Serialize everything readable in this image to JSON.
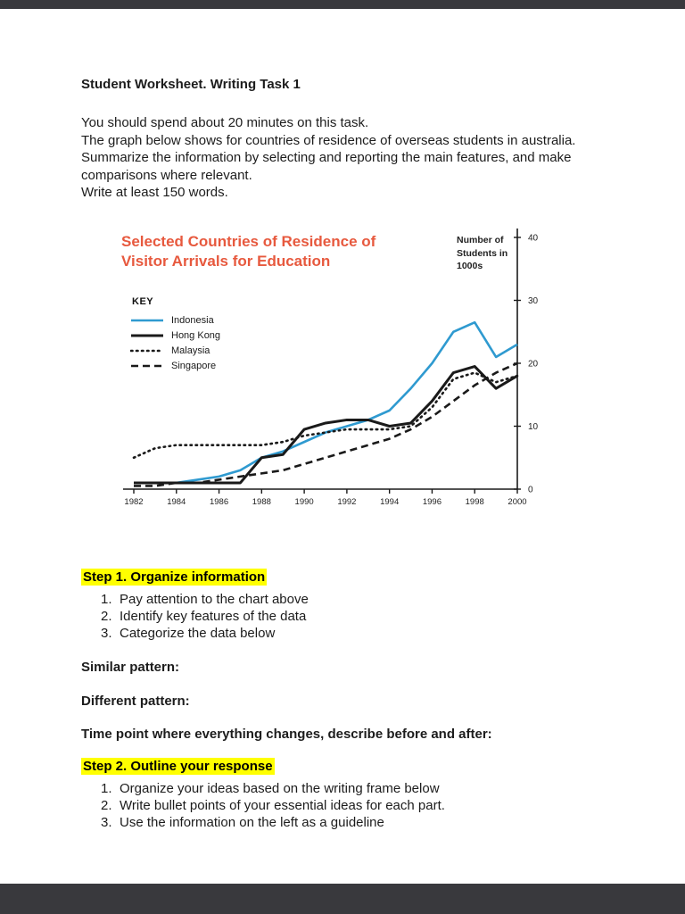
{
  "viewer": {
    "chrome_color": "#39393d"
  },
  "document": {
    "title": "Student Worksheet. Writing Task 1",
    "highlight_color": "#ffff00",
    "intro": {
      "line1": "You should spend about 20 minutes on this task.",
      "line2": "The graph below shows for countries of residence of overseas students in australia.",
      "line3": "Summarize the information by selecting and reporting the main features, and make comparisons where relevant.",
      "line4": "Write at least 150 words."
    },
    "step1": {
      "heading": "Step 1. Organize information",
      "items": [
        {
          "num": "1.",
          "text": "Pay attention to the chart above"
        },
        {
          "num": "2.",
          "text": "Identify key features of the data"
        },
        {
          "num": "3.",
          "text": "Categorize the data below"
        }
      ]
    },
    "prompts": {
      "similar": "Similar pattern:",
      "different": "Different pattern:",
      "time_point": "Time point where everything changes, describe before and after:"
    },
    "step2": {
      "heading": "Step 2. Outline your response",
      "items": [
        {
          "num": "1.",
          "text": "Organize your ideas based on the writing frame below"
        },
        {
          "num": "2.",
          "text": "Write bullet points of your essential ideas for each part."
        },
        {
          "num": "3.",
          "text": "Use the information on the left as a guideline"
        }
      ]
    }
  },
  "chart_data": {
    "type": "line",
    "title": "Selected Countries of Residence of Visitor Arrivals for Education",
    "title_line1": "Selected Countries of Residence of",
    "title_line2": "Visitor Arrivals for Education",
    "title_color": "#e7593e",
    "y_axis_label": "Number of Students in 1000s",
    "key_label": "KEY",
    "legend_position": "top-left",
    "grid": false,
    "xlim": [
      1982,
      2000
    ],
    "ylim": [
      0,
      40
    ],
    "x": [
      1982,
      1983,
      1984,
      1985,
      1986,
      1987,
      1988,
      1989,
      1990,
      1991,
      1992,
      1993,
      1994,
      1995,
      1996,
      1997,
      1998,
      1999,
      2000
    ],
    "x_tick_labels": [
      "1982",
      "1984",
      "1986",
      "1988",
      "1990",
      "1992",
      "1994",
      "1996",
      "1998",
      "2000"
    ],
    "y_ticks": [
      0,
      10,
      20,
      30,
      40
    ],
    "y_tick_labels": [
      "0",
      "10",
      "20",
      "30",
      "40"
    ],
    "series": [
      {
        "name": "Indonesia",
        "color": "#2f9ad0",
        "style": "solid",
        "values": [
          1,
          1,
          1,
          1.5,
          2,
          3,
          5,
          6,
          7.5,
          9,
          10,
          11,
          12.5,
          16,
          20,
          25,
          26.5,
          21,
          23
        ]
      },
      {
        "name": "Hong Kong",
        "color": "#1a1a1a",
        "style": "solid",
        "values": [
          1,
          1,
          1,
          1,
          1,
          1,
          5,
          5.5,
          9.5,
          10.5,
          11,
          11,
          10,
          10.5,
          14,
          18.5,
          19.5,
          16,
          18
        ]
      },
      {
        "name": "Malaysia",
        "color": "#1a1a1a",
        "style": "dotted",
        "values": [
          5,
          6.5,
          7,
          7,
          7,
          7,
          7,
          7.5,
          8.5,
          9,
          9.5,
          9.5,
          9.5,
          10,
          13,
          17.5,
          18.5,
          17,
          18
        ]
      },
      {
        "name": "Singapore",
        "color": "#1a1a1a",
        "style": "dashed",
        "values": [
          0.5,
          0.5,
          1,
          1,
          1.5,
          2,
          2.5,
          3,
          4,
          5,
          6,
          7,
          8,
          9.5,
          11.5,
          14,
          16.5,
          18.5,
          20
        ]
      }
    ]
  }
}
